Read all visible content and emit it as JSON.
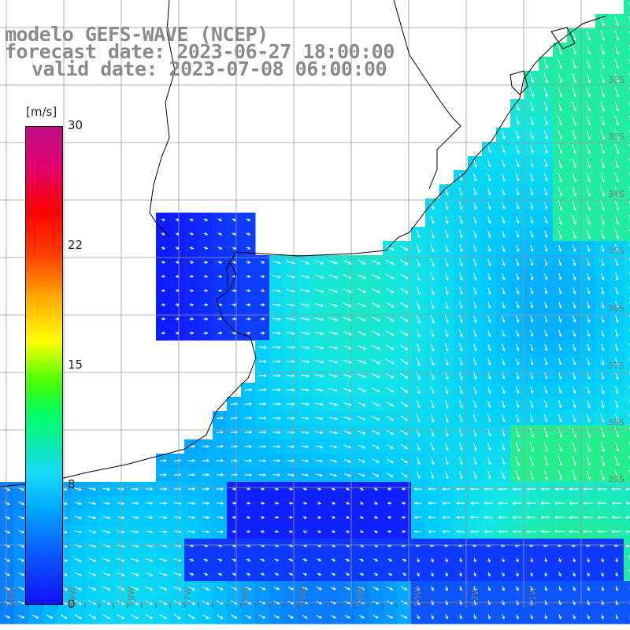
{
  "title": {
    "line1": "modelo GEFS-WAVE (NCEP)",
    "line2": "forecast date: 2023-06-27 18:00:00",
    "line3": "valid date: 2023-07-08 06:00:00"
  },
  "colorbar": {
    "unit": "[m/s]",
    "ticks": [
      "30",
      "22",
      "15",
      "8",
      "0"
    ],
    "tick_values": [
      30,
      22,
      15,
      8,
      0
    ],
    "min": 0,
    "max": 30
  },
  "map": {
    "variable": "wind speed and direction",
    "lat_labels": [
      "32S",
      "33S",
      "34S",
      "35S",
      "36S",
      "37S",
      "38S",
      "39S"
    ],
    "lon_labels": [
      "60W",
      "59W",
      "58W",
      "57W",
      "56W",
      "55W",
      "54W",
      "53W",
      "52W",
      "51W"
    ],
    "colors": {
      "land": "#ffffff",
      "coast": "#000000",
      "grid": "#9a9a9a",
      "arrow": "#ffffff",
      "title": "#8a8a8a"
    }
  }
}
